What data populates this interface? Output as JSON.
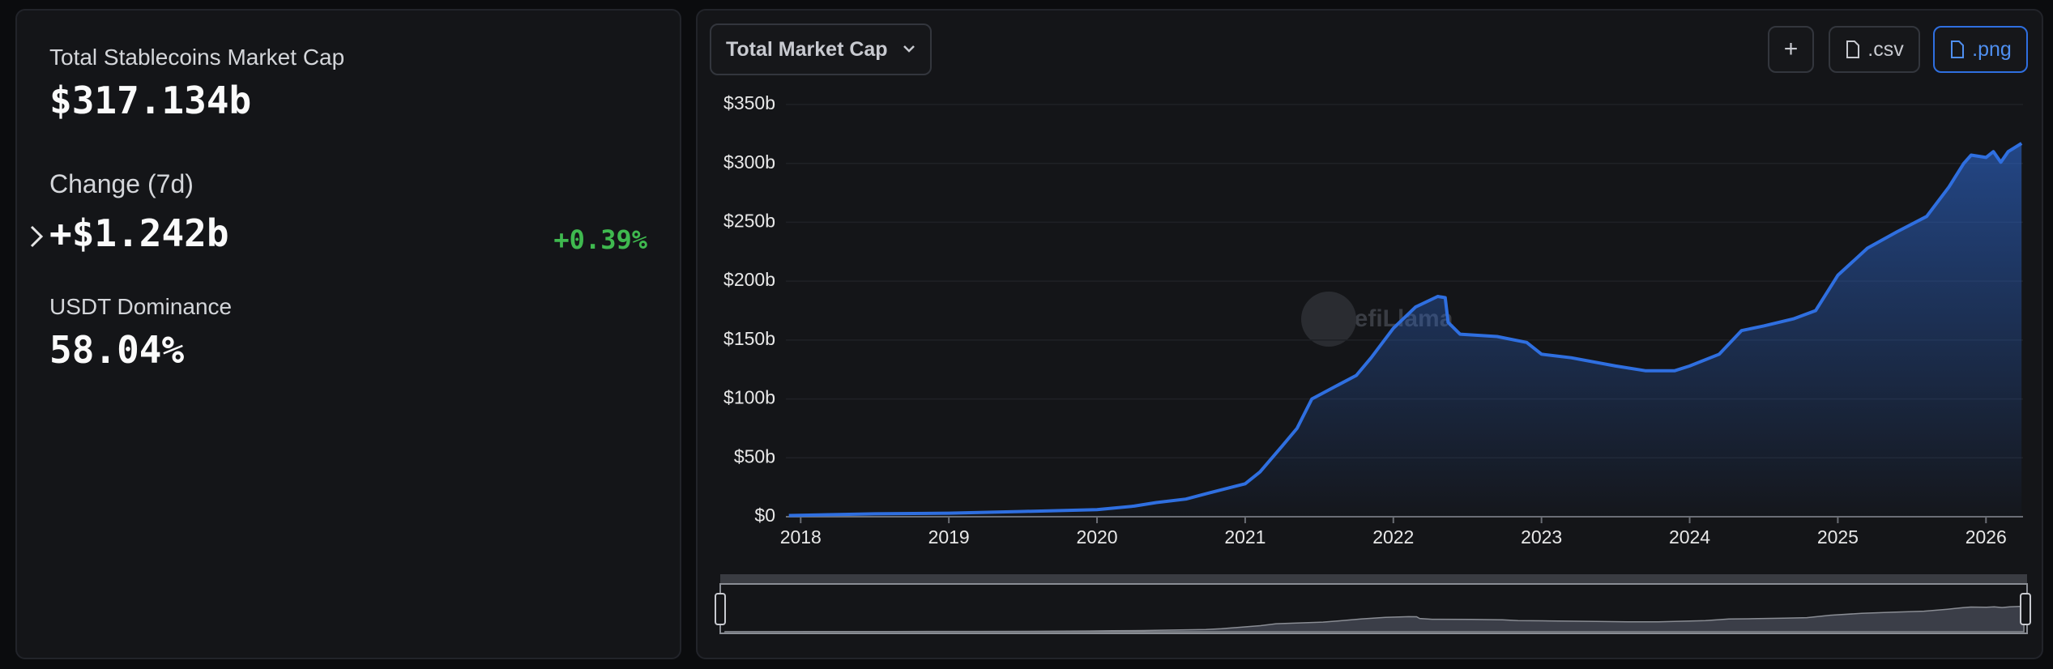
{
  "summary": {
    "market_cap_label": "Total Stablecoins Market Cap",
    "market_cap": "$317.134b",
    "change_label": "Change (7d)",
    "change": "+$1.242b",
    "change_pct": "+0.39%",
    "dominance_label": "USDT Dominance",
    "dominance": "58.04%"
  },
  "toolbar": {
    "metric": "Total Market Cap",
    "add": "+",
    "csv": ".csv",
    "png": ".png"
  },
  "chart_data": {
    "type": "area",
    "watermark": "DefiLlama",
    "color": "#2f6fe0",
    "grid": true,
    "x": [
      2017.92,
      2018.5,
      2019.0,
      2019.5,
      2020.0,
      2020.25,
      2020.4,
      2020.6,
      2020.75,
      2021.0,
      2021.1,
      2021.25,
      2021.35,
      2021.45,
      2021.6,
      2021.75,
      2021.85,
      2022.0,
      2022.15,
      2022.3,
      2022.35,
      2022.37,
      2022.45,
      2022.7,
      2022.9,
      2023.0,
      2023.2,
      2023.5,
      2023.7,
      2023.9,
      2024.0,
      2024.2,
      2024.35,
      2024.5,
      2024.7,
      2024.85,
      2024.95,
      2025.0,
      2025.2,
      2025.4,
      2025.6,
      2025.75,
      2025.85,
      2025.9,
      2026.0,
      2026.05,
      2026.1,
      2026.15,
      2026.24
    ],
    "values": [
      1,
      2.5,
      3,
      4.5,
      6,
      9,
      12,
      15,
      20,
      28,
      38,
      60,
      75,
      100,
      110,
      120,
      135,
      160,
      178,
      187,
      186,
      165,
      155,
      153,
      148,
      138,
      135,
      128,
      124,
      124,
      128,
      138,
      158,
      162,
      168,
      175,
      195,
      205,
      228,
      242,
      255,
      280,
      300,
      307,
      305,
      310,
      301,
      310,
      317
    ],
    "xlim": [
      2017.9,
      2026.25
    ],
    "ylim": [
      0,
      350
    ],
    "xticks": [
      2018,
      2019,
      2020,
      2021,
      2022,
      2023,
      2024,
      2025,
      2026
    ],
    "yticks": [
      {
        "value": 0,
        "label": "$0"
      },
      {
        "value": 50,
        "label": "$50b"
      },
      {
        "value": 100,
        "label": "$100b"
      },
      {
        "value": 150,
        "label": "$150b"
      },
      {
        "value": 200,
        "label": "$200b"
      },
      {
        "value": 250,
        "label": "$250b"
      },
      {
        "value": 300,
        "label": "$300b"
      },
      {
        "value": 350,
        "label": "$350b"
      }
    ]
  }
}
